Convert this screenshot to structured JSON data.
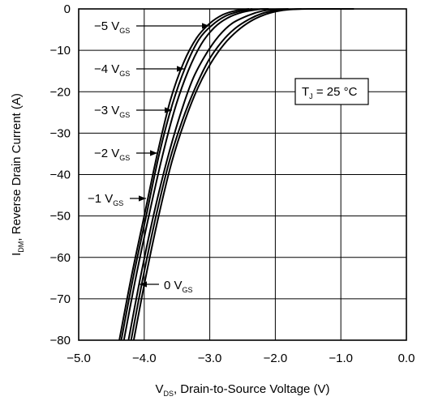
{
  "chart_data": {
    "type": "line",
    "title": "",
    "xlabel": {
      "main": "V",
      "sub": "DS",
      "rest": ", Drain-to-Source Voltage (V)"
    },
    "ylabel": {
      "main": "I",
      "sub": "DM",
      "rest": ", Reverse Drain Current (A)"
    },
    "xlim": [
      -5.0,
      0.0
    ],
    "ylim": [
      -80,
      0
    ],
    "x_ticks": [
      "−5.0",
      "−4.0",
      "−3.0",
      "−2.0",
      "−1.0",
      "0.0"
    ],
    "y_ticks": [
      "0",
      "−10",
      "−20",
      "−30",
      "−40",
      "−50",
      "−60",
      "−70",
      "−80"
    ],
    "grid": true,
    "annotation": {
      "main": "T",
      "sub": "J",
      "rest": " = 25 °C"
    },
    "series": [
      {
        "name": {
          "value": "−5",
          "unit": " V",
          "sub": "GS"
        },
        "points": [
          [
            -4.38,
            -80
          ],
          [
            -4.2,
            -65
          ],
          [
            -4.0,
            -50
          ],
          [
            -3.8,
            -35
          ],
          [
            -3.6,
            -22
          ],
          [
            -3.4,
            -13
          ],
          [
            -3.2,
            -7
          ],
          [
            -3.0,
            -3.5
          ],
          [
            -2.8,
            -1.4
          ],
          [
            -2.6,
            -0.4
          ],
          [
            -2.4,
            0
          ]
        ]
      },
      {
        "name": {
          "value": "−4",
          "unit": " V",
          "sub": "GS"
        },
        "points": [
          [
            -4.35,
            -80
          ],
          [
            -4.17,
            -65
          ],
          [
            -3.97,
            -50
          ],
          [
            -3.77,
            -35
          ],
          [
            -3.57,
            -23
          ],
          [
            -3.37,
            -14
          ],
          [
            -3.17,
            -7.5
          ],
          [
            -2.97,
            -4
          ],
          [
            -2.77,
            -1.8
          ],
          [
            -2.57,
            -0.7
          ],
          [
            -2.35,
            0
          ]
        ]
      },
      {
        "name": {
          "value": "−3",
          "unit": " V",
          "sub": "GS"
        },
        "points": [
          [
            -4.31,
            -80
          ],
          [
            -4.13,
            -65
          ],
          [
            -3.93,
            -50
          ],
          [
            -3.73,
            -36
          ],
          [
            -3.53,
            -24
          ],
          [
            -3.33,
            -15
          ],
          [
            -3.13,
            -8.5
          ],
          [
            -2.93,
            -4.5
          ],
          [
            -2.73,
            -2.2
          ],
          [
            -2.5,
            -0.8
          ],
          [
            -2.25,
            -0.1
          ],
          [
            -2.1,
            0
          ]
        ]
      },
      {
        "name": {
          "value": "−2",
          "unit": " V",
          "sub": "GS"
        },
        "points": [
          [
            -4.24,
            -80
          ],
          [
            -4.06,
            -65
          ],
          [
            -3.86,
            -50
          ],
          [
            -3.66,
            -37
          ],
          [
            -3.46,
            -26
          ],
          [
            -3.26,
            -17
          ],
          [
            -3.06,
            -11
          ],
          [
            -2.86,
            -6.5
          ],
          [
            -2.66,
            -3.5
          ],
          [
            -2.4,
            -1.5
          ],
          [
            -2.2,
            -0.5
          ],
          [
            -2.0,
            -0.1
          ],
          [
            -1.8,
            0
          ]
        ]
      },
      {
        "name": {
          "value": "−1",
          "unit": " V",
          "sub": "GS"
        },
        "points": [
          [
            -4.2,
            -80
          ],
          [
            -4.02,
            -65
          ],
          [
            -3.82,
            -50
          ],
          [
            -3.62,
            -37
          ],
          [
            -3.42,
            -27
          ],
          [
            -3.22,
            -19
          ],
          [
            -3.02,
            -12.5
          ],
          [
            -2.82,
            -8
          ],
          [
            -2.62,
            -4.8
          ],
          [
            -2.4,
            -2.5
          ],
          [
            -2.2,
            -1.1
          ],
          [
            -2.0,
            -0.4
          ],
          [
            -1.8,
            -0.1
          ],
          [
            -1.6,
            0
          ]
        ]
      },
      {
        "name": {
          "value": "0",
          "unit": " V",
          "sub": "GS"
        },
        "points": [
          [
            -4.16,
            -80
          ],
          [
            -3.98,
            -65
          ],
          [
            -3.78,
            -50
          ],
          [
            -3.58,
            -37
          ],
          [
            -3.38,
            -27
          ],
          [
            -3.18,
            -19
          ],
          [
            -2.98,
            -13
          ],
          [
            -2.78,
            -8.5
          ],
          [
            -2.58,
            -5.3
          ],
          [
            -2.38,
            -3
          ],
          [
            -2.18,
            -1.5
          ],
          [
            -1.98,
            -0.6
          ],
          [
            -1.78,
            -0.15
          ],
          [
            -1.5,
            0
          ],
          [
            -0.8,
            0
          ]
        ]
      }
    ]
  }
}
